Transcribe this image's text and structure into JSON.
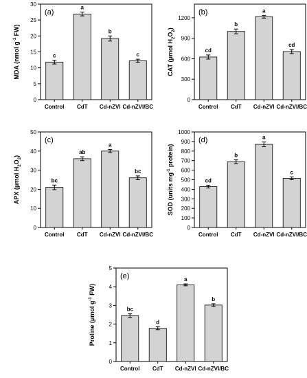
{
  "chart_data": [
    {
      "panel": "(a)",
      "type": "bar",
      "categories": [
        "Control",
        "CdT",
        "Cd-nZVI",
        "Cd-nZVI/BC"
      ],
      "values": [
        11.8,
        26.9,
        19.2,
        12.2
      ],
      "errors": [
        0.6,
        0.6,
        0.8,
        0.5
      ],
      "letters": [
        "c",
        "a",
        "b",
        "c"
      ],
      "ylabel_main": "MDA (nmol g",
      "ylabel_sup": "-1",
      "ylabel_tail": " FW)",
      "ylim": [
        0,
        30
      ],
      "yticks": [
        0,
        5,
        10,
        15,
        20,
        25,
        30
      ],
      "bar_color": "#d3d3d3"
    },
    {
      "panel": "(b)",
      "type": "bar",
      "categories": [
        "Control",
        "CdT",
        "Cd-nZVI",
        "Cd-nZVI/BC"
      ],
      "values": [
        625,
        1000,
        1215,
        705
      ],
      "errors": [
        30,
        35,
        20,
        30
      ],
      "letters": [
        "cd",
        "b",
        "a",
        "cd"
      ],
      "ylabel_main": "CAT (μmol H",
      "ylabel_sub": "2",
      "ylabel_mid": "O",
      "ylabel_sub2": "2",
      "ylabel_tail": ")",
      "ylim": [
        0,
        1400
      ],
      "yticks": [
        0,
        300,
        600,
        900,
        1200
      ],
      "bar_color": "#d3d3d3"
    },
    {
      "panel": "(c)",
      "type": "bar",
      "categories": [
        "Control",
        "CdT",
        "Cd-nZVI",
        "Cd-nZVI/BC"
      ],
      "values": [
        21,
        36,
        40,
        26
      ],
      "errors": [
        1.2,
        1.0,
        0.8,
        1.0
      ],
      "letters": [
        "bc",
        "ab",
        "a",
        "bc"
      ],
      "ylabel_main": "APX (μmol H",
      "ylabel_sub": "2",
      "ylabel_mid": "O",
      "ylabel_sub2": "2",
      "ylabel_tail": ")",
      "ylim": [
        0,
        50
      ],
      "yticks": [
        0,
        10,
        20,
        30,
        40,
        50
      ],
      "bar_color": "#d3d3d3"
    },
    {
      "panel": "(d)",
      "type": "bar",
      "categories": [
        "Control",
        "CdT",
        "Cd-nZVI",
        "Cd-nZVI/BC"
      ],
      "values": [
        428,
        688,
        870,
        515
      ],
      "errors": [
        15,
        20,
        25,
        15
      ],
      "letters": [
        "cd",
        "b",
        "a",
        "c"
      ],
      "ylabel_main": "SOD (units mg",
      "ylabel_sup": "-1",
      "ylabel_tail": " protein)",
      "ylim": [
        0,
        1000
      ],
      "yticks": [
        0,
        100,
        200,
        300,
        400,
        500,
        600,
        700,
        800,
        900,
        1000
      ],
      "bar_color": "#d3d3d3"
    },
    {
      "panel": "(e)",
      "type": "bar",
      "categories": [
        "Control",
        "CdT",
        "Cd-nZVI",
        "Cd-nZVI/BC"
      ],
      "values": [
        2.45,
        1.78,
        4.1,
        3.02
      ],
      "errors": [
        0.1,
        0.08,
        0.05,
        0.07
      ],
      "letters": [
        "bc",
        "d",
        "a",
        "b"
      ],
      "ylabel_main": "Proline (μmol g",
      "ylabel_sup": "-1",
      "ylabel_tail": " FW)",
      "ylim": [
        0,
        5
      ],
      "yticks": [
        0,
        1,
        2,
        3,
        4,
        5
      ],
      "bar_color": "#d3d3d3"
    }
  ]
}
